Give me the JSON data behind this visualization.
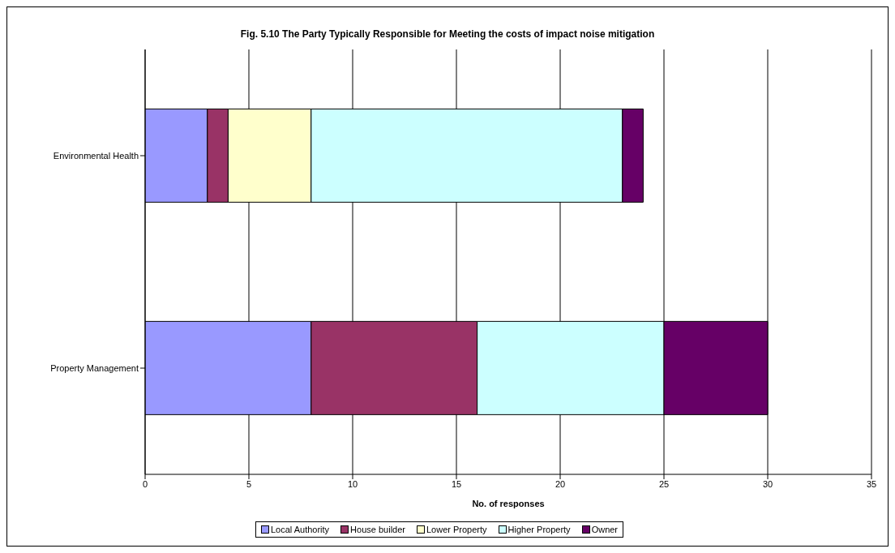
{
  "chart_data": {
    "type": "bar",
    "orientation": "horizontal",
    "stacked": true,
    "title": "Fig. 5.10 The Party Typically Responsible for Meeting the costs of impact noise mitigation",
    "xlabel": "No. of responses",
    "categories": [
      "Environmental Health",
      "Property Management"
    ],
    "series": [
      {
        "name": "Local Authority",
        "color": "#9999ff",
        "values": [
          3,
          8
        ]
      },
      {
        "name": "House builder",
        "color": "#993366",
        "values": [
          1,
          8
        ]
      },
      {
        "name": "Lower Property",
        "color": "#ffffcc",
        "values": [
          4,
          0
        ]
      },
      {
        "name": "Higher Property",
        "color": "#ccffff",
        "values": [
          15,
          9
        ]
      },
      {
        "name": "Owner",
        "color": "#660066",
        "values": [
          1,
          5
        ]
      }
    ],
    "xlim": [
      0,
      35
    ],
    "xticks": [
      0,
      5,
      10,
      15,
      20,
      25,
      30,
      35
    ],
    "grid": "x",
    "legend": "bottom"
  }
}
